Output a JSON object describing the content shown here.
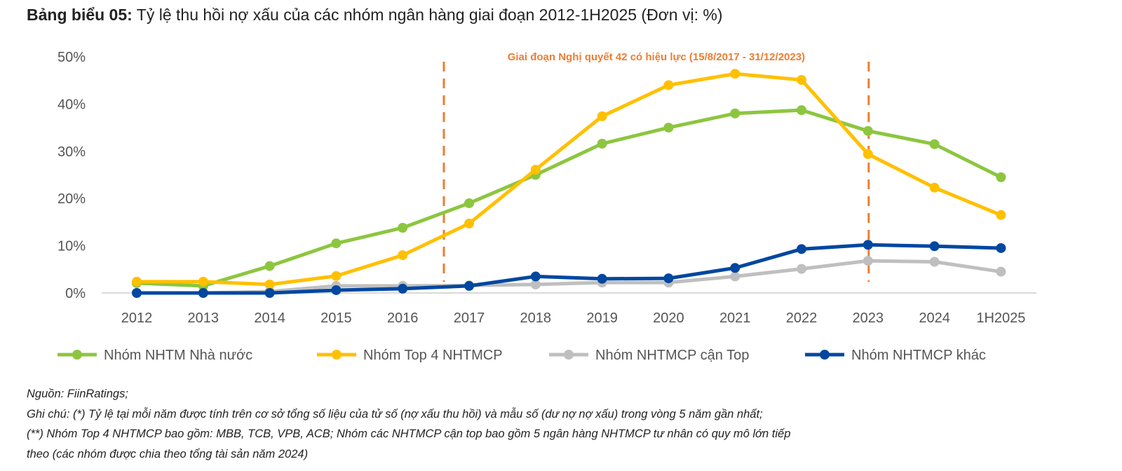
{
  "title": {
    "prefix": "Bảng biểu 05:",
    "text": "Tỷ lệ thu hồi nợ xấu của các nhóm ngân hàng giai đoạn 2012-1H2025 (Đơn vị: %)"
  },
  "chart_data": {
    "type": "line",
    "title": "Tỷ lệ thu hồi nợ xấu của các nhóm ngân hàng giai đoạn 2012-1H2025 (Đơn vị: %)",
    "categories": [
      "2012",
      "2013",
      "2014",
      "2015",
      "2016",
      "2017",
      "2018",
      "2019",
      "2020",
      "2021",
      "2022",
      "2023",
      "2024",
      "1H2025"
    ],
    "ylim": [
      0,
      50
    ],
    "yticks": [
      "0%",
      "10%",
      "20%",
      "30%",
      "40%",
      "50%"
    ],
    "xlabel": "",
    "ylabel": "",
    "grid": false,
    "legend": "bottom",
    "annotation": "Giai đoạn Nghị quyết 42 có hiệu lực (15/8/2017 - 31/12/2023)",
    "annotation_range": [
      "2017-08-15",
      "2023-12-31"
    ],
    "series": [
      {
        "name": "Nhóm NHTM Nhà nước",
        "color": "#8CC63F",
        "values": [
          2.1,
          1.5,
          5.7,
          10.5,
          13.8,
          19.0,
          25.0,
          31.6,
          35.0,
          38.0,
          38.7,
          34.3,
          31.5,
          24.5
        ]
      },
      {
        "name": "Nhóm Top 4 NHTMCP",
        "color": "#FFC000",
        "values": [
          2.4,
          2.4,
          1.8,
          3.6,
          8.0,
          14.7,
          26.1,
          37.4,
          44.0,
          46.4,
          45.1,
          29.4,
          22.3,
          16.5
        ]
      },
      {
        "name": "Nhóm NHTMCP cận Top",
        "color": "#BFBFBF",
        "values": [
          0.0,
          0.0,
          0.3,
          1.5,
          1.5,
          1.6,
          1.8,
          2.2,
          2.2,
          3.5,
          5.1,
          6.8,
          6.6,
          4.5
        ]
      },
      {
        "name": "Nhóm NHTMCP khác",
        "color": "#0047A0",
        "values": [
          0.0,
          0.0,
          0.0,
          0.6,
          0.9,
          1.5,
          3.5,
          3.0,
          3.1,
          5.3,
          9.3,
          10.2,
          9.9,
          9.5
        ]
      }
    ]
  },
  "notes": {
    "source": "Nguồn: FiinRatings;",
    "note1": "Ghi chú: (*) Tỷ lệ tại mỗi năm được tính trên cơ sở tổng số liệu của tử số (nợ xấu thu hồi) và mẫu số (dư nợ nợ xấu) trong vòng  5 năm gần nhất;",
    "note2": "(**) Nhóm Top 4 NHTMCP bao gồm: MBB, TCB, VPB, ACB; Nhóm các NHTMCP cận top bao gồm 5 ngân hàng NHTMCP tư nhân có quy mô lớn tiếp",
    "note3": "theo (các nhóm được chia theo tổng tài sản năm 2024)"
  }
}
